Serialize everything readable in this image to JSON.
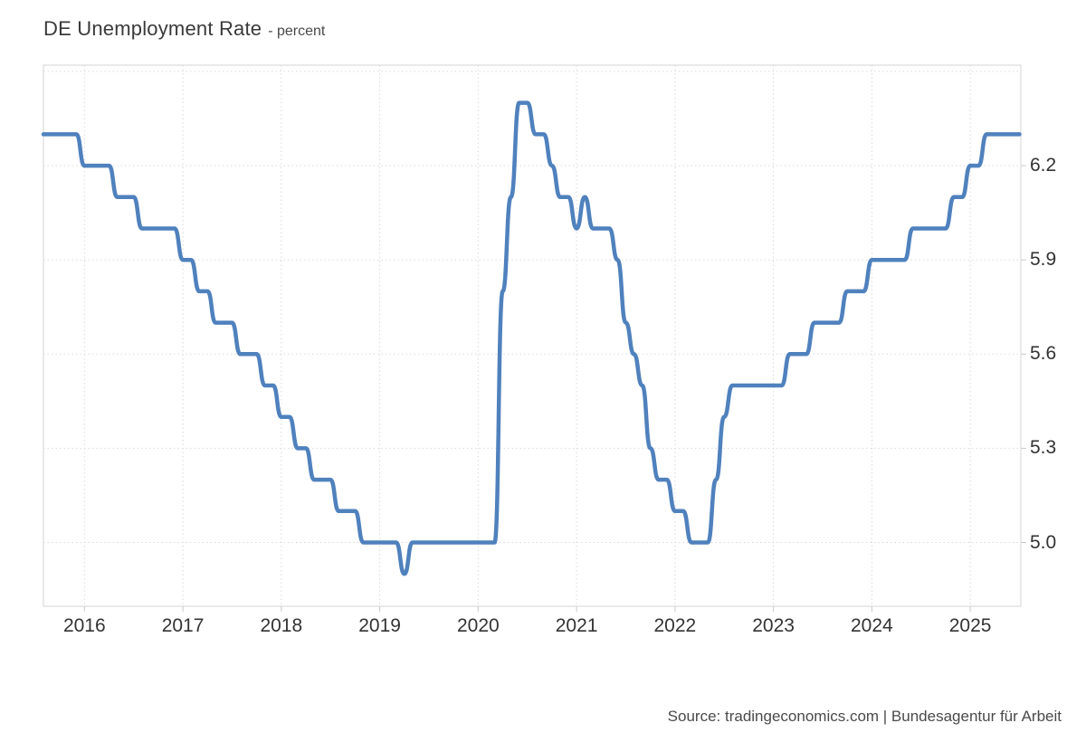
{
  "page": {
    "background": "#ffffff"
  },
  "header": {
    "title": "DE Unemployment Rate",
    "unit_label": "- percent"
  },
  "footer": {
    "source": "Source: tradingeconomics.com | Bundesagentur für Arbeit"
  },
  "chart_data": {
    "type": "line",
    "title": "DE Unemployment Rate",
    "ylabel": "percent",
    "frequency": "monthly",
    "start_month": "2015-08",
    "end_month": "2025-07",
    "line_color": "#4f81bd",
    "grid": "dotted",
    "grid_color": "#dadada",
    "border_color": "#d4d4d4",
    "tick_color": "#c9c9c9",
    "legend": "none",
    "y_axis": {
      "side": "right",
      "range": [
        4.797,
        6.52
      ],
      "ticks": [
        {
          "label": "5.0",
          "value": 5.0
        },
        {
          "label": "5.3",
          "value": 5.3
        },
        {
          "label": "5.6",
          "value": 5.6
        },
        {
          "label": "5.9",
          "value": 5.9
        },
        {
          "label": "6.2",
          "value": 6.2
        }
      ],
      "unlabeled_gridlines": [
        6.5
      ]
    },
    "x_axis": {
      "ticks": [
        {
          "label": "2016",
          "month_index": 5
        },
        {
          "label": "2017",
          "month_index": 17
        },
        {
          "label": "2018",
          "month_index": 29
        },
        {
          "label": "2019",
          "month_index": 41
        },
        {
          "label": "2020",
          "month_index": 53
        },
        {
          "label": "2021",
          "month_index": 65
        },
        {
          "label": "2022",
          "month_index": 77
        },
        {
          "label": "2023",
          "month_index": 89
        },
        {
          "label": "2024",
          "month_index": 101
        },
        {
          "label": "2025",
          "month_index": 113
        }
      ]
    },
    "series": [
      {
        "name": "DE Unemployment Rate",
        "values": [
          6.3,
          6.3,
          6.3,
          6.3,
          6.3,
          6.2,
          6.2,
          6.2,
          6.2,
          6.1,
          6.1,
          6.1,
          6.0,
          6.0,
          6.0,
          6.0,
          6.0,
          5.9,
          5.9,
          5.8,
          5.8,
          5.7,
          5.7,
          5.7,
          5.6,
          5.6,
          5.6,
          5.5,
          5.5,
          5.4,
          5.4,
          5.3,
          5.3,
          5.2,
          5.2,
          5.2,
          5.1,
          5.1,
          5.1,
          5.0,
          5.0,
          5.0,
          5.0,
          5.0,
          4.9,
          5.0,
          5.0,
          5.0,
          5.0,
          5.0,
          5.0,
          5.0,
          5.0,
          5.0,
          5.0,
          5.0,
          5.8,
          6.1,
          6.4,
          6.4,
          6.3,
          6.3,
          6.2,
          6.1,
          6.1,
          6.0,
          6.1,
          6.0,
          6.0,
          6.0,
          5.9,
          5.7,
          5.6,
          5.5,
          5.3,
          5.2,
          5.2,
          5.1,
          5.1,
          5.0,
          5.0,
          5.0,
          5.2,
          5.4,
          5.5,
          5.5,
          5.5,
          5.5,
          5.5,
          5.5,
          5.5,
          5.6,
          5.6,
          5.6,
          5.7,
          5.7,
          5.7,
          5.7,
          5.8,
          5.8,
          5.8,
          5.9,
          5.9,
          5.9,
          5.9,
          5.9,
          6.0,
          6.0,
          6.0,
          6.0,
          6.0,
          6.1,
          6.1,
          6.2,
          6.2,
          6.3,
          6.3,
          6.3,
          6.3,
          6.3
        ]
      }
    ]
  }
}
